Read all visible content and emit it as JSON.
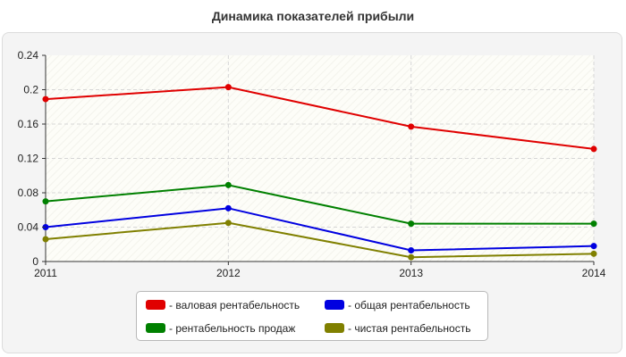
{
  "chart_data": {
    "type": "line",
    "title": "Динамика показателей прибыли",
    "x": [
      "2011",
      "2012",
      "2013",
      "2014"
    ],
    "ylim": [
      0,
      0.24
    ],
    "yticks": [
      "0",
      "0.04",
      "0.08",
      "0.12",
      "0.16",
      "0.2",
      "0.24"
    ],
    "grid": true,
    "legend_position": "bottom",
    "series": [
      {
        "name": "- валовая рентабельность",
        "color": "#e00000",
        "values": [
          0.189,
          0.203,
          0.157,
          0.131
        ]
      },
      {
        "name": "- рентабельность продаж",
        "color": "#008000",
        "values": [
          0.07,
          0.089,
          0.044,
          0.044
        ]
      },
      {
        "name": "- общая рентабельность",
        "color": "#0000e0",
        "values": [
          0.04,
          0.062,
          0.013,
          0.018
        ]
      },
      {
        "name": "- чистая рентабельность",
        "color": "#808000",
        "values": [
          0.026,
          0.045,
          0.005,
          0.009
        ]
      }
    ]
  }
}
